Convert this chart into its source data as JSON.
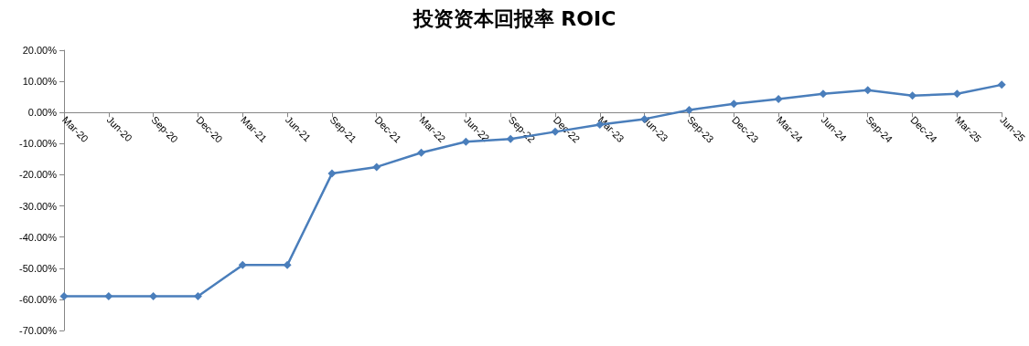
{
  "chart_data": {
    "type": "line",
    "title": "投资资本回报率 ROIC",
    "categories": [
      "Mar-20",
      "Jun-20",
      "Sep-20",
      "Dec-20",
      "Mar-21",
      "Jun-21",
      "Sep-21",
      "Dec-21",
      "Mar-22",
      "Jun-22",
      "Sep-22",
      "Dec-22",
      "Mar-23",
      "Jun-23",
      "Sep-23",
      "Dec-23",
      "Mar-24",
      "Jun-24",
      "Sep-24",
      "Dec-24",
      "Mar-25",
      "Jun-25"
    ],
    "series": [
      {
        "color": "#4a7ebb",
        "values": [
          -59,
          -59,
          -59,
          -59,
          -49,
          -49,
          -19.6,
          -17.5,
          -12.9,
          -9.4,
          -8.5,
          -6.2,
          -3.9,
          -2.1,
          0.8,
          2.8,
          4.3,
          6.0,
          7.2,
          5.4,
          6.0,
          8.9
        ]
      }
    ],
    "ylim": [
      -70,
      20
    ],
    "yticks": [
      {
        "value": -70,
        "label": "-70.00%"
      },
      {
        "value": -60,
        "label": "-60.00%"
      },
      {
        "value": -50,
        "label": "-50.00%"
      },
      {
        "value": -40,
        "label": "-40.00%"
      },
      {
        "value": -30,
        "label": "-30.00%"
      },
      {
        "value": -20,
        "label": "-20.00%"
      },
      {
        "value": -10,
        "label": "-10.00%"
      },
      {
        "value": 0,
        "label": "0.00%"
      },
      {
        "value": 10,
        "label": "10.00%"
      },
      {
        "value": 20,
        "label": "20.00%"
      }
    ],
    "marker": "diamond",
    "line_style": "solid"
  }
}
